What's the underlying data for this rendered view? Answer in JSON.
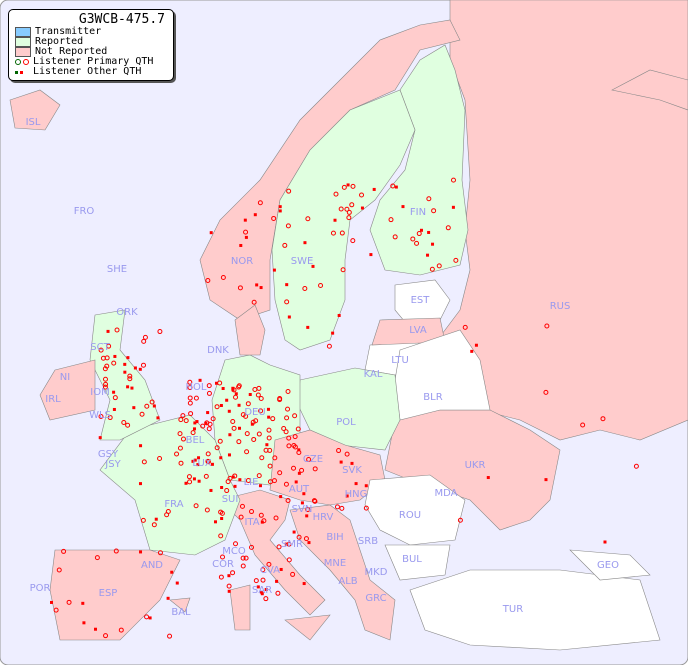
{
  "title": "G3WCB-475.7",
  "legend": [
    {
      "label": "Transmitter",
      "color": "#88ccff"
    },
    {
      "label": "Reported",
      "color": "#e0ffe0"
    },
    {
      "label": "Not Reported",
      "color": "#ffcccc"
    },
    {
      "label": "Listener Primary QTH",
      "colors": [
        "#006600",
        "#ff0000"
      ]
    },
    {
      "label": "Listener Other QTH",
      "colors": [
        "#006600",
        "#ff0000"
      ]
    }
  ],
  "colors": {
    "sea": "#eeeeff",
    "reported": "#e0ffe0",
    "not_reported": "#ffcccc",
    "no_data": "#ffffff",
    "label": "#9999ee"
  },
  "countries": [
    {
      "code": "ISL",
      "status": "not_reported"
    },
    {
      "code": "FRO",
      "status": "no_data"
    },
    {
      "code": "SHE",
      "status": "reported"
    },
    {
      "code": "ORK",
      "status": "reported"
    },
    {
      "code": "NOR",
      "status": "not_reported"
    },
    {
      "code": "SWE",
      "status": "reported"
    },
    {
      "code": "FIN",
      "status": "reported"
    },
    {
      "code": "EST",
      "status": "no_data"
    },
    {
      "code": "RUS",
      "status": "not_reported"
    },
    {
      "code": "LVA",
      "status": "not_reported"
    },
    {
      "code": "LTU",
      "status": "no_data"
    },
    {
      "code": "KAL",
      "status": "no_data"
    },
    {
      "code": "BLR",
      "status": "no_data"
    },
    {
      "code": "DNK",
      "status": "not_reported"
    },
    {
      "code": "HOL",
      "status": "reported"
    },
    {
      "code": "DEU",
      "status": "reported"
    },
    {
      "code": "POL",
      "status": "reported"
    },
    {
      "code": "UKR",
      "status": "not_reported"
    },
    {
      "code": "IRL",
      "status": "not_reported"
    },
    {
      "code": "NI",
      "status": "reported"
    },
    {
      "code": "SCT",
      "status": "reported"
    },
    {
      "code": "IOM",
      "status": "reported"
    },
    {
      "code": "WLS",
      "status": "reported"
    },
    {
      "code": "BEL",
      "status": "reported"
    },
    {
      "code": "LUX",
      "status": "reported"
    },
    {
      "code": "GSY",
      "status": "reported"
    },
    {
      "code": "JSY",
      "status": "reported"
    },
    {
      "code": "FRA",
      "status": "reported"
    },
    {
      "code": "SUI",
      "status": "reported"
    },
    {
      "code": "LIE",
      "status": "reported"
    },
    {
      "code": "AUT",
      "status": "not_reported"
    },
    {
      "code": "CZE",
      "status": "not_reported"
    },
    {
      "code": "SVK",
      "status": "not_reported"
    },
    {
      "code": "HNG",
      "status": "not_reported"
    },
    {
      "code": "MDA",
      "status": "no_data"
    },
    {
      "code": "ROU",
      "status": "no_data"
    },
    {
      "code": "SVN",
      "status": "not_reported"
    },
    {
      "code": "HRV",
      "status": "not_reported"
    },
    {
      "code": "BIH",
      "status": "not_reported"
    },
    {
      "code": "SRB",
      "status": "not_reported"
    },
    {
      "code": "BUL",
      "status": "no_data"
    },
    {
      "code": "MNE",
      "status": "not_reported"
    },
    {
      "code": "ALB",
      "status": "not_reported"
    },
    {
      "code": "MKD",
      "status": "not_reported"
    },
    {
      "code": "GRC",
      "status": "not_reported"
    },
    {
      "code": "TUR",
      "status": "no_data"
    },
    {
      "code": "GEO",
      "status": "no_data"
    },
    {
      "code": "ITA",
      "status": "not_reported"
    },
    {
      "code": "SMR",
      "status": "not_reported"
    },
    {
      "code": "MCO",
      "status": "reported"
    },
    {
      "code": "COR",
      "status": "reported"
    },
    {
      "code": "CVA",
      "status": "not_reported"
    },
    {
      "code": "SAR",
      "status": "not_reported"
    },
    {
      "code": "AND",
      "status": "not_reported"
    },
    {
      "code": "POR",
      "status": "not_reported"
    },
    {
      "code": "ESP",
      "status": "not_reported"
    },
    {
      "code": "BAL",
      "status": "not_reported"
    }
  ]
}
